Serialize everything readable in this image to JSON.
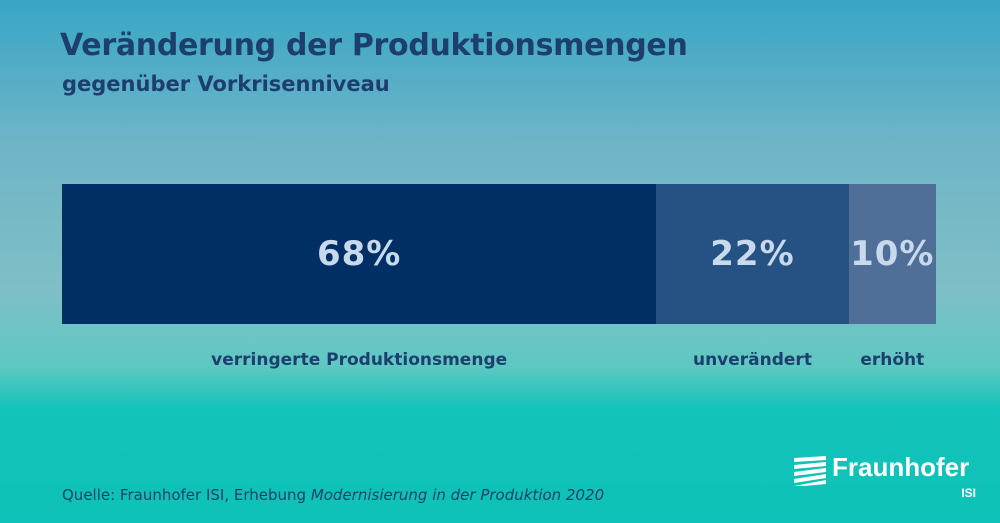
{
  "chart_data": {
    "type": "bar",
    "title": "Veränderung der Produktionsmengen",
    "subtitle": "gegenüber Vorkrisenniveau",
    "categories": [
      "verringerte Produktionsmenge",
      "unverändert",
      "erhöht"
    ],
    "values": [
      68,
      22,
      10
    ],
    "value_labels": [
      "68%",
      "22%",
      "10%"
    ],
    "colors": [
      "#002f65",
      "#265283",
      "#4f6f98"
    ],
    "stacked": true,
    "orientation": "horizontal"
  },
  "source": {
    "prefix": "Quelle: Fraunhofer ISI, Erhebung ",
    "italic": "Modernisierung in der Produktion 2020"
  },
  "logo": {
    "name": "Fraunhofer",
    "sub": "ISI"
  }
}
